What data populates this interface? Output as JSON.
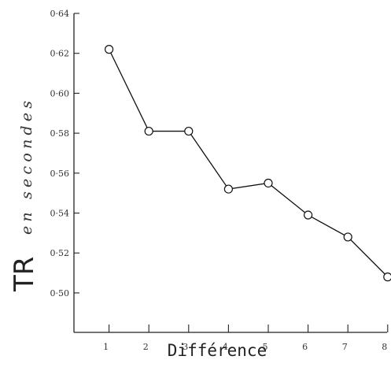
{
  "chart_data": {
    "type": "line",
    "xlabel": "Différence",
    "ylabel_main": "TR",
    "ylabel_rest": "en secondes",
    "x": [
      1,
      2,
      3,
      4,
      5,
      6,
      7,
      8
    ],
    "x_tick_labels": [
      "1",
      "2",
      "3",
      "4",
      "5",
      "6",
      "7",
      "8"
    ],
    "y_ticks": [
      0.64,
      0.62,
      0.6,
      0.58,
      0.56,
      0.54,
      0.52,
      0.5
    ],
    "y_tick_labels": [
      "0·64",
      "0·62",
      "0·60",
      "0·58",
      "0·56",
      "0·54",
      "0·52",
      "0·50"
    ],
    "series": [
      {
        "values": [
          0.622,
          0.581,
          0.581,
          0.552,
          0.555,
          0.539,
          0.528,
          0.508
        ]
      }
    ],
    "xlim": [
      0,
      8
    ],
    "ylim": [
      0.48,
      0.64
    ],
    "grid": false,
    "marker": "open-circle"
  }
}
